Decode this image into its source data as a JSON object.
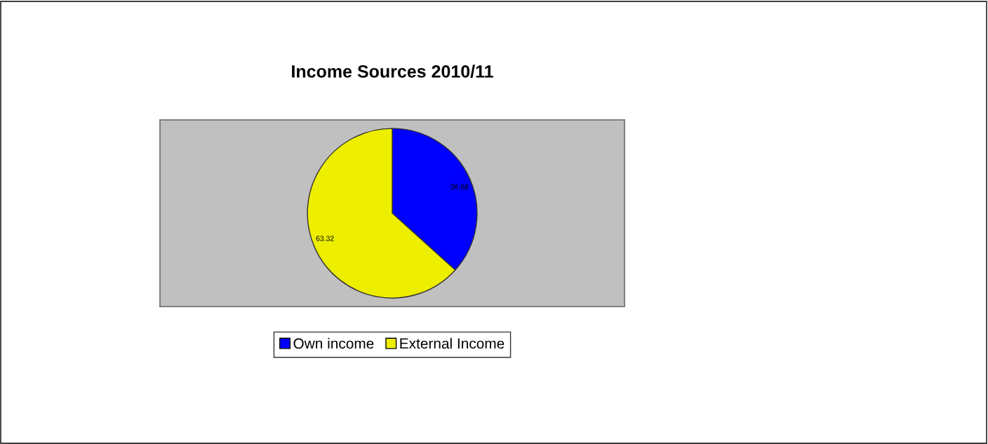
{
  "chart_data": {
    "type": "pie",
    "title": "Income Sources 2010/11",
    "categories": [
      "Own income",
      "External Income"
    ],
    "values": [
      36.68,
      63.32
    ],
    "colors": [
      "#0000ff",
      "#eeee00"
    ],
    "data_labels": true,
    "legend": "bottom"
  }
}
